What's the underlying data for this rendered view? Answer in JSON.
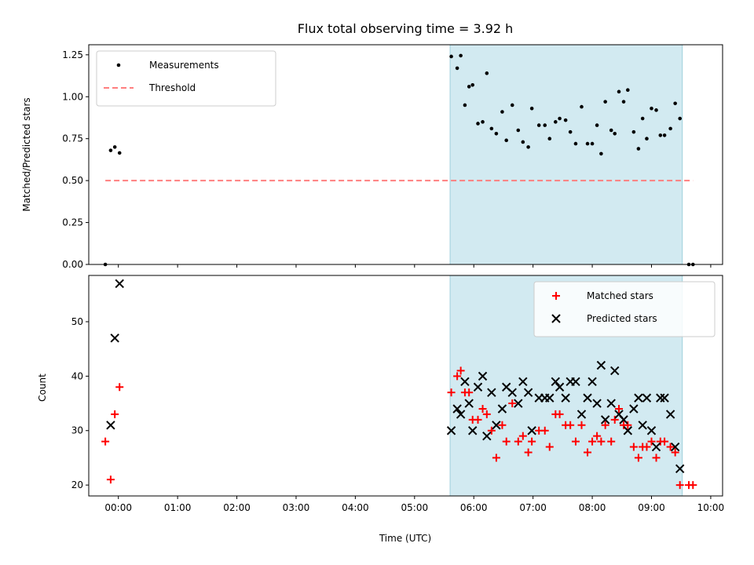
{
  "chart_data": [
    {
      "type": "scatter",
      "title": "Flux total observing time = 3.92 h",
      "xlabel": "",
      "ylabel": "Matched/Predicted stars",
      "xlim": [
        -0.5,
        10.2
      ],
      "ylim": [
        0,
        1.31
      ],
      "x_ticks": [
        0,
        1,
        2,
        3,
        4,
        5,
        6,
        7,
        8,
        9,
        10
      ],
      "y_ticks": [
        0,
        0.25,
        0.5,
        0.75,
        1.0,
        1.25
      ],
      "y_tick_labels": [
        "0.00",
        "0.25",
        "0.50",
        "0.75",
        "1.00",
        "1.25"
      ],
      "shaded_region": {
        "x": [
          5.6,
          9.52
        ],
        "color": "#add8e6"
      },
      "legend": {
        "placement": "top-left",
        "entries": [
          "Measurements",
          "Threshold"
        ]
      },
      "series": [
        {
          "name": "Measurements",
          "color": "#000000",
          "marker": "dot",
          "points": [
            [
              -0.22,
              0.0
            ],
            [
              -0.13,
              0.68
            ],
            [
              -0.06,
              0.7
            ],
            [
              0.02,
              0.665
            ],
            [
              5.62,
              1.24
            ],
            [
              5.72,
              1.17
            ],
            [
              5.78,
              1.245
            ],
            [
              5.85,
              0.95
            ],
            [
              5.92,
              1.06
            ],
            [
              5.98,
              1.07
            ],
            [
              6.07,
              0.84
            ],
            [
              6.15,
              0.85
            ],
            [
              6.22,
              1.14
            ],
            [
              6.3,
              0.81
            ],
            [
              6.38,
              0.78
            ],
            [
              6.48,
              0.91
            ],
            [
              6.55,
              0.74
            ],
            [
              6.65,
              0.95
            ],
            [
              6.75,
              0.8
            ],
            [
              6.83,
              0.73
            ],
            [
              6.92,
              0.7
            ],
            [
              6.98,
              0.93
            ],
            [
              7.1,
              0.83
            ],
            [
              7.2,
              0.83
            ],
            [
              7.28,
              0.75
            ],
            [
              7.38,
              0.85
            ],
            [
              7.45,
              0.87
            ],
            [
              7.55,
              0.86
            ],
            [
              7.63,
              0.79
            ],
            [
              7.72,
              0.72
            ],
            [
              7.82,
              0.94
            ],
            [
              7.92,
              0.72
            ],
            [
              8.0,
              0.72
            ],
            [
              8.08,
              0.83
            ],
            [
              8.15,
              0.66
            ],
            [
              8.22,
              0.97
            ],
            [
              8.32,
              0.8
            ],
            [
              8.38,
              0.78
            ],
            [
              8.45,
              1.03
            ],
            [
              8.53,
              0.97
            ],
            [
              8.6,
              1.04
            ],
            [
              8.7,
              0.79
            ],
            [
              8.78,
              0.69
            ],
            [
              8.85,
              0.87
            ],
            [
              8.92,
              0.75
            ],
            [
              9.0,
              0.93
            ],
            [
              9.08,
              0.92
            ],
            [
              9.15,
              0.77
            ],
            [
              9.22,
              0.77
            ],
            [
              9.32,
              0.81
            ],
            [
              9.4,
              0.96
            ],
            [
              9.48,
              0.87
            ],
            [
              9.63,
              0.0
            ],
            [
              9.7,
              0.0
            ]
          ]
        },
        {
          "name": "Threshold",
          "color": "#ff7f7f",
          "line": "dashed",
          "points": [
            [
              -0.22,
              0.5
            ],
            [
              9.7,
              0.5
            ]
          ]
        }
      ]
    },
    {
      "type": "scatter",
      "title": "",
      "xlabel": "Time (UTC)",
      "ylabel": "Count",
      "xlim": [
        -0.5,
        10.2
      ],
      "ylim": [
        18,
        58.5
      ],
      "x_ticks": [
        0,
        1,
        2,
        3,
        4,
        5,
        6,
        7,
        8,
        9,
        10
      ],
      "x_tick_labels": [
        "00:00",
        "01:00",
        "02:00",
        "03:00",
        "04:00",
        "05:00",
        "06:00",
        "07:00",
        "08:00",
        "09:00",
        "10:00"
      ],
      "y_ticks": [
        20,
        30,
        40,
        50
      ],
      "y_tick_labels": [
        "20",
        "30",
        "40",
        "50"
      ],
      "shaded_region": {
        "x": [
          5.6,
          9.52
        ],
        "color": "#add8e6"
      },
      "legend": {
        "placement": "top-right",
        "entries": [
          "Matched stars",
          "Predicted stars"
        ]
      },
      "series": [
        {
          "name": "Matched stars",
          "color": "#ff0000",
          "marker": "plus",
          "points": [
            [
              -0.22,
              28
            ],
            [
              -0.13,
              21
            ],
            [
              -0.06,
              33
            ],
            [
              0.02,
              38
            ],
            [
              5.62,
              37
            ],
            [
              5.72,
              40
            ],
            [
              5.78,
              41
            ],
            [
              5.85,
              37
            ],
            [
              5.92,
              37
            ],
            [
              5.98,
              32
            ],
            [
              6.07,
              32
            ],
            [
              6.15,
              34
            ],
            [
              6.22,
              33
            ],
            [
              6.3,
              30
            ],
            [
              6.38,
              25
            ],
            [
              6.48,
              31
            ],
            [
              6.55,
              28
            ],
            [
              6.65,
              35
            ],
            [
              6.75,
              28
            ],
            [
              6.83,
              29
            ],
            [
              6.92,
              26
            ],
            [
              6.98,
              28
            ],
            [
              7.1,
              30
            ],
            [
              7.2,
              30
            ],
            [
              7.28,
              27
            ],
            [
              7.38,
              33
            ],
            [
              7.45,
              33
            ],
            [
              7.55,
              31
            ],
            [
              7.63,
              31
            ],
            [
              7.72,
              28
            ],
            [
              7.82,
              31
            ],
            [
              7.92,
              26
            ],
            [
              8.0,
              28
            ],
            [
              8.08,
              29
            ],
            [
              8.15,
              28
            ],
            [
              8.22,
              31
            ],
            [
              8.32,
              28
            ],
            [
              8.38,
              32
            ],
            [
              8.45,
              34
            ],
            [
              8.53,
              31
            ],
            [
              8.6,
              31
            ],
            [
              8.7,
              27
            ],
            [
              8.78,
              25
            ],
            [
              8.85,
              27
            ],
            [
              8.92,
              27
            ],
            [
              9.0,
              28
            ],
            [
              9.08,
              25
            ],
            [
              9.15,
              28
            ],
            [
              9.22,
              28
            ],
            [
              9.32,
              27
            ],
            [
              9.4,
              26
            ],
            [
              9.48,
              20
            ],
            [
              9.63,
              20
            ],
            [
              9.7,
              20
            ]
          ]
        },
        {
          "name": "Predicted stars",
          "color": "#000000",
          "marker": "x",
          "points": [
            [
              -0.13,
              31
            ],
            [
              -0.06,
              47
            ],
            [
              0.02,
              57
            ],
            [
              5.62,
              30
            ],
            [
              5.72,
              34
            ],
            [
              5.78,
              33
            ],
            [
              5.85,
              39
            ],
            [
              5.92,
              35
            ],
            [
              5.98,
              30
            ],
            [
              6.07,
              38
            ],
            [
              6.15,
              40
            ],
            [
              6.22,
              29
            ],
            [
              6.3,
              37
            ],
            [
              6.38,
              31
            ],
            [
              6.48,
              34
            ],
            [
              6.55,
              38
            ],
            [
              6.65,
              37
            ],
            [
              6.75,
              35
            ],
            [
              6.83,
              39
            ],
            [
              6.92,
              37
            ],
            [
              6.98,
              30
            ],
            [
              7.1,
              36
            ],
            [
              7.2,
              36
            ],
            [
              7.28,
              36
            ],
            [
              7.38,
              39
            ],
            [
              7.45,
              38
            ],
            [
              7.55,
              36
            ],
            [
              7.63,
              39
            ],
            [
              7.72,
              39
            ],
            [
              7.82,
              33
            ],
            [
              7.92,
              36
            ],
            [
              8.0,
              39
            ],
            [
              8.08,
              35
            ],
            [
              8.15,
              42
            ],
            [
              8.22,
              32
            ],
            [
              8.32,
              35
            ],
            [
              8.38,
              41
            ],
            [
              8.45,
              33
            ],
            [
              8.53,
              32
            ],
            [
              8.6,
              30
            ],
            [
              8.7,
              34
            ],
            [
              8.78,
              36
            ],
            [
              8.85,
              31
            ],
            [
              8.92,
              36
            ],
            [
              9.0,
              30
            ],
            [
              9.08,
              27
            ],
            [
              9.15,
              36
            ],
            [
              9.22,
              36
            ],
            [
              9.32,
              33
            ],
            [
              9.4,
              27
            ],
            [
              9.48,
              23
            ]
          ]
        }
      ]
    }
  ]
}
